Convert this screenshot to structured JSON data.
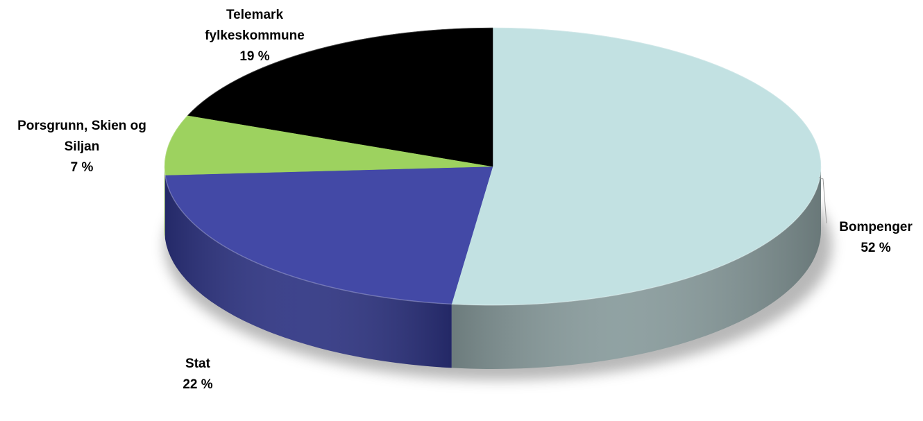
{
  "chart_data": {
    "type": "pie",
    "style": "3d",
    "slices": [
      {
        "label_lines": [
          "Bompenger"
        ],
        "value": 52,
        "value_label": "52 %",
        "color": "#c2e1e2",
        "side_color": "#879a9b"
      },
      {
        "label_lines": [
          "Stat"
        ],
        "value": 22,
        "value_label": "22 %",
        "color": "#4349a6",
        "side_color": "#2d3382"
      },
      {
        "label_lines": [
          "Porsgrunn, Skien og",
          "Siljan"
        ],
        "value": 7,
        "value_label": "7 %",
        "color": "#9dd25f",
        "side_color": "#6c9a3a"
      },
      {
        "label_lines": [
          "Telemark",
          "fylkeskommune"
        ],
        "value": 19,
        "value_label": "19 %",
        "color": "#000000",
        "side_color": "#000000"
      }
    ],
    "legend": "none",
    "data_labels": "outside, category and percentage"
  }
}
